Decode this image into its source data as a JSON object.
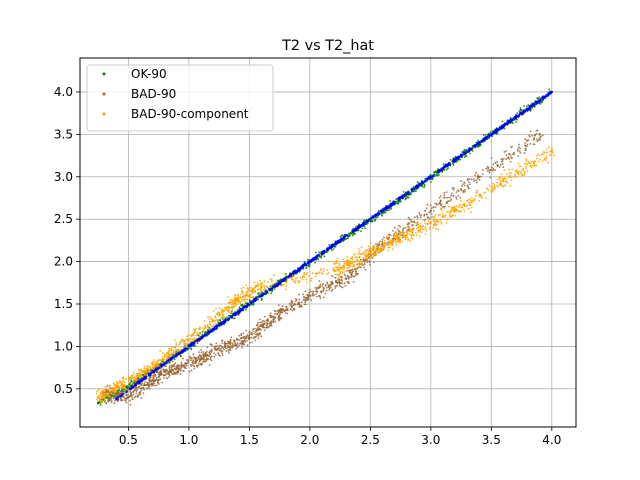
{
  "chart_data": {
    "type": "scatter",
    "title": "T2 vs T2_hat",
    "xlabel": "",
    "ylabel": "",
    "xlim": [
      0.1,
      4.2
    ],
    "ylim": [
      0.05,
      4.4
    ],
    "xticks": [
      "0.5",
      "1.0",
      "1.5",
      "2.0",
      "2.5",
      "3.0",
      "3.5",
      "4.0"
    ],
    "yticks": [
      "0.5",
      "1.0",
      "1.5",
      "2.0",
      "2.5",
      "3.0",
      "3.5",
      "4.0"
    ],
    "xtick_values": [
      0.5,
      1.0,
      1.5,
      2.0,
      2.5,
      3.0,
      3.5,
      4.0
    ],
    "ytick_values": [
      0.5,
      1.0,
      1.5,
      2.0,
      2.5,
      3.0,
      3.5,
      4.0
    ],
    "grid": true,
    "legend_position": "top-left",
    "series": [
      {
        "name": "OK-90",
        "color": "#008000",
        "points": [
          [
            0.25,
            0.33
          ],
          [
            0.4,
            0.45
          ],
          [
            0.55,
            0.57
          ],
          [
            0.7,
            0.71
          ],
          [
            0.85,
            0.86
          ],
          [
            1.0,
            1.0
          ],
          [
            1.15,
            1.16
          ],
          [
            1.3,
            1.31
          ],
          [
            1.45,
            1.46
          ],
          [
            1.6,
            1.6
          ],
          [
            1.75,
            1.75
          ],
          [
            1.9,
            1.89
          ],
          [
            2.05,
            2.04
          ],
          [
            2.2,
            2.19
          ],
          [
            2.35,
            2.34
          ],
          [
            2.5,
            2.49
          ],
          [
            2.65,
            2.64
          ],
          [
            2.8,
            2.79
          ],
          [
            2.95,
            2.94
          ],
          [
            3.1,
            3.09
          ],
          [
            3.25,
            3.24
          ],
          [
            3.4,
            3.4
          ],
          [
            3.55,
            3.55
          ],
          [
            3.7,
            3.7
          ],
          [
            3.85,
            3.85
          ],
          [
            4.0,
            4.0
          ]
        ],
        "band": {
          "x_start": 0.3,
          "x_end": 4.0,
          "upper_end": 4.15,
          "lower_end": 3.55
        }
      },
      {
        "name": "BAD-90",
        "color": "#996633",
        "points": [
          [
            0.3,
            0.45
          ],
          [
            0.5,
            0.4
          ],
          [
            0.7,
            0.6
          ],
          [
            0.9,
            0.75
          ],
          [
            1.1,
            0.85
          ],
          [
            1.3,
            1.0
          ],
          [
            1.5,
            1.1
          ],
          [
            1.7,
            1.35
          ],
          [
            2.0,
            1.6
          ],
          [
            2.3,
            1.8
          ],
          [
            2.6,
            2.2
          ],
          [
            3.0,
            2.6
          ],
          [
            3.4,
            3.0
          ],
          [
            3.9,
            3.5
          ]
        ],
        "band": {
          "x_start": 0.5,
          "x_end": 3.9,
          "upper_end": 3.6,
          "lower_end": 3.0
        }
      },
      {
        "name": "BAD-90-component",
        "color": "#ffa500",
        "points": [
          [
            0.25,
            0.4
          ],
          [
            0.45,
            0.55
          ],
          [
            0.65,
            0.7
          ],
          [
            0.85,
            0.9
          ],
          [
            1.2,
            1.3
          ],
          [
            1.4,
            1.55
          ],
          [
            1.6,
            1.7
          ],
          [
            2.2,
            1.9
          ],
          [
            2.5,
            2.1
          ],
          [
            2.8,
            2.3
          ],
          [
            3.2,
            2.6
          ],
          [
            3.6,
            2.95
          ],
          [
            4.0,
            3.3
          ]
        ],
        "band": {
          "x_start": 2.0,
          "x_end": 4.0,
          "upper_end": 3.7,
          "lower_end": 2.9
        }
      },
      {
        "name": "",
        "color": "#0000ff",
        "points": [
          [
            0.4,
            0.38
          ],
          [
            0.8,
            0.8
          ],
          [
            1.2,
            1.2
          ],
          [
            1.6,
            1.6
          ],
          [
            2.0,
            2.0
          ],
          [
            2.4,
            2.4
          ],
          [
            2.8,
            2.8
          ],
          [
            3.2,
            3.2
          ],
          [
            3.6,
            3.6
          ],
          [
            4.0,
            4.0
          ]
        ]
      }
    ]
  }
}
